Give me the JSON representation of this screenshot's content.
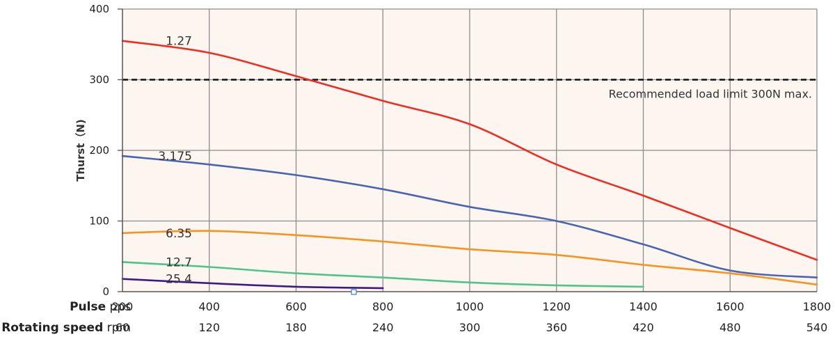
{
  "chart_data": {
    "type": "line",
    "ylabel": "Thurst（N)",
    "x_axis_rows": [
      {
        "label_bold": "Pulse",
        "label_unit": "pps",
        "ticks": [
          "200",
          "400",
          "600",
          "800",
          "1000",
          "1200",
          "1400",
          "1600",
          "1800"
        ]
      },
      {
        "label_bold": "Rotating speed",
        "label_unit": "rpm",
        "ticks": [
          "60",
          "120",
          "180",
          "240",
          "300",
          "360",
          "420",
          "480",
          "540"
        ]
      }
    ],
    "xlim": [
      200,
      1800
    ],
    "ylim": [
      0,
      400
    ],
    "y_ticks": [
      "0",
      "100",
      "200",
      "300",
      "400"
    ],
    "grid": true,
    "reference_line": {
      "y": 300,
      "label": "Recommended load limit 300N max."
    },
    "series": [
      {
        "name": "1.27",
        "color": "#ee2e24",
        "points": [
          [
            200,
            355
          ],
          [
            400,
            338
          ],
          [
            600,
            305
          ],
          [
            800,
            270
          ],
          [
            1000,
            237
          ],
          [
            1200,
            180
          ],
          [
            1400,
            136
          ],
          [
            1600,
            90
          ],
          [
            1800,
            45
          ]
        ]
      },
      {
        "name": "3.175",
        "color": "#4a64b4",
        "points": [
          [
            200,
            192
          ],
          [
            400,
            180
          ],
          [
            600,
            165
          ],
          [
            800,
            145
          ],
          [
            1000,
            120
          ],
          [
            1200,
            100
          ],
          [
            1400,
            67
          ],
          [
            1600,
            30
          ],
          [
            1800,
            20
          ]
        ]
      },
      {
        "name": "6.35",
        "color": "#f7941d",
        "points": [
          [
            200,
            83
          ],
          [
            400,
            86
          ],
          [
            600,
            80
          ],
          [
            800,
            71
          ],
          [
            1000,
            60
          ],
          [
            1200,
            52
          ],
          [
            1400,
            38
          ],
          [
            1600,
            26
          ],
          [
            1800,
            10
          ]
        ]
      },
      {
        "name": "12.7",
        "color": "#4fc38a",
        "points": [
          [
            200,
            42
          ],
          [
            400,
            35
          ],
          [
            600,
            26
          ],
          [
            800,
            20
          ],
          [
            1000,
            13
          ],
          [
            1200,
            9
          ],
          [
            1400,
            7
          ]
        ]
      },
      {
        "name": "25.4",
        "color": "#3b1a8c",
        "points": [
          [
            200,
            18
          ],
          [
            400,
            12
          ],
          [
            600,
            7
          ],
          [
            800,
            5
          ]
        ]
      }
    ]
  }
}
